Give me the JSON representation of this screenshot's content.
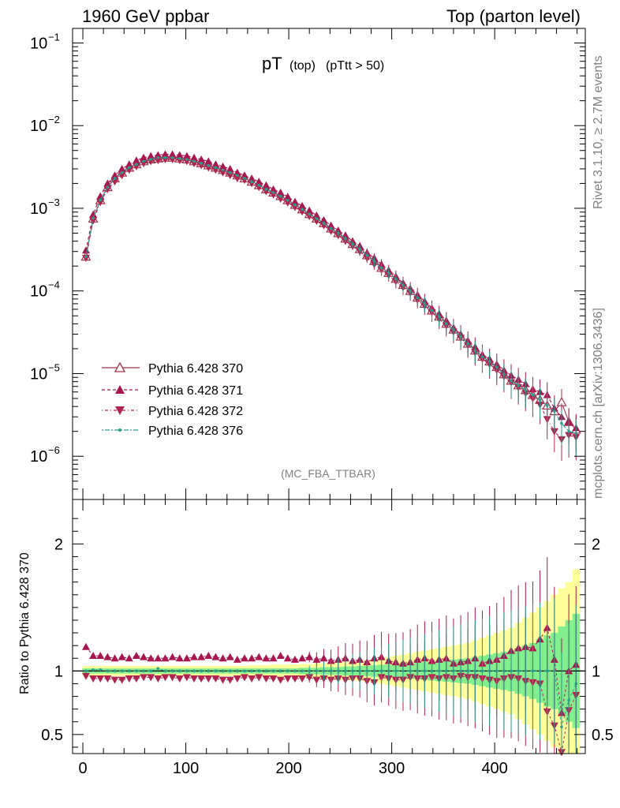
{
  "header": {
    "left": "1960 GeV ppbar",
    "right": "Top (parton level)"
  },
  "side": {
    "rivet": "Rivet 3.1.10, ≥ 2.7M events",
    "mcplots": "mcplots.cern.ch [arXiv:1306.3436]"
  },
  "chart_data": [
    {
      "type": "line",
      "title_main": "pT",
      "title_sub1": "(top)",
      "title_sub2": "(pTtt > 50)",
      "analysis_label": "(MC_FBA_TTBAR)",
      "xlim": [
        -10,
        488
      ],
      "ylim": [
        3e-07,
        0.15
      ],
      "yscale": "log",
      "yticks": [
        {
          "base": "10",
          "exp": "−1",
          "value": 0.1
        },
        {
          "base": "10",
          "exp": "−2",
          "value": 0.01
        },
        {
          "base": "10",
          "exp": "−3",
          "value": 0.001
        },
        {
          "base": "10",
          "exp": "−4",
          "value": 0.0001
        },
        {
          "base": "10",
          "exp": "−5",
          "value": 1e-05
        },
        {
          "base": "10",
          "exp": "−6",
          "value": 1e-06
        }
      ],
      "x": [
        3,
        10,
        17,
        24,
        31,
        38,
        45,
        52,
        59,
        66,
        73,
        80,
        87,
        94,
        101,
        108,
        115,
        122,
        129,
        136,
        143,
        150,
        157,
        164,
        171,
        178,
        185,
        192,
        199,
        206,
        213,
        220,
        227,
        234,
        241,
        248,
        255,
        262,
        269,
        276,
        283,
        290,
        297,
        304,
        311,
        318,
        325,
        332,
        339,
        346,
        353,
        360,
        367,
        374,
        381,
        388,
        395,
        402,
        409,
        416,
        423,
        430,
        437,
        444,
        451,
        458,
        465,
        472,
        479
      ],
      "series": [
        {
          "name": "Pythia 6.428 370",
          "color": "#a0304a",
          "marker": "open-triangle-up",
          "dash": "solid",
          "values": [
            0.00026,
            0.00075,
            0.00125,
            0.0018,
            0.0023,
            0.0027,
            0.0031,
            0.0034,
            0.0037,
            0.0039,
            0.004,
            0.0041,
            0.0041,
            0.004,
            0.0039,
            0.0037,
            0.0035,
            0.0033,
            0.0031,
            0.0029,
            0.0027,
            0.0025,
            0.0023,
            0.0021,
            0.0019,
            0.0017,
            0.00155,
            0.0014,
            0.00125,
            0.0011,
            0.00097,
            0.00085,
            0.00075,
            0.00066,
            0.00057,
            0.0005,
            0.00043,
            0.00037,
            0.00032,
            0.00027,
            0.00023,
            0.00019,
            0.000165,
            0.00014,
            0.000118,
            0.0001,
            8.3e-05,
            7e-05,
            5.8e-05,
            4.9e-05,
            4e-05,
            3.4e-05,
            2.8e-05,
            2.3e-05,
            1.9e-05,
            1.6e-05,
            1.4e-05,
            1.2e-05,
            9.8e-06,
            8.2e-06,
            7.2e-06,
            6.3e-06,
            5.5e-06,
            4.8e-06,
            4.1e-06,
            3.5e-06,
            4.5e-06,
            2.6e-06,
            2.1e-06
          ]
        },
        {
          "name": "Pythia 6.428 371",
          "color": "#a81650",
          "marker": "filled-triangle-up",
          "dash": "4,3",
          "values": [
            0.00031,
            0.00084,
            0.0014,
            0.002,
            0.0025,
            0.003,
            0.0034,
            0.0038,
            0.0041,
            0.0043,
            0.0044,
            0.0045,
            0.0045,
            0.0044,
            0.0043,
            0.0041,
            0.0039,
            0.0037,
            0.0034,
            0.0032,
            0.003,
            0.0027,
            0.0025,
            0.0023,
            0.0021,
            0.0019,
            0.0017,
            0.00155,
            0.00138,
            0.0012,
            0.00107,
            0.00094,
            0.00082,
            0.00072,
            0.00062,
            0.00054,
            0.00047,
            0.0004,
            0.00035,
            0.00029,
            0.00025,
            0.00021,
            0.000178,
            0.00015,
            0.000125,
            0.000107,
            9e-05,
            7.5e-05,
            6.2e-05,
            5.3e-05,
            4.4e-05,
            3.6e-05,
            3e-05,
            2.5e-05,
            2.1e-05,
            1.7e-05,
            1.5e-05,
            1.3e-05,
            1.1e-05,
            9.5e-06,
            8.5e-06,
            7.5e-06,
            6.5e-06,
            6e-06,
            5.5e-06,
            3.8e-06,
            3e-06,
            2.6e-06,
            2.2e-06
          ]
        },
        {
          "name": "Pythia 6.428 372",
          "color": "#b02550",
          "marker": "filled-triangle-down",
          "dash": "1,3,4,3",
          "values": [
            0.00025,
            0.00071,
            0.00118,
            0.0017,
            0.0021,
            0.0025,
            0.0029,
            0.0032,
            0.0035,
            0.0037,
            0.0038,
            0.0039,
            0.0039,
            0.0038,
            0.0037,
            0.0035,
            0.0033,
            0.0031,
            0.0029,
            0.0027,
            0.0025,
            0.0023,
            0.0022,
            0.002,
            0.0018,
            0.0016,
            0.00146,
            0.0013,
            0.00117,
            0.00103,
            0.00091,
            0.0008,
            0.0007,
            0.00062,
            0.00053,
            0.00047,
            0.0004,
            0.00035,
            0.0003,
            0.00025,
            0.00021,
            0.00018,
            0.000155,
            0.00013,
            0.00011,
            9.5e-05,
            7.8e-05,
            6.6e-05,
            5.5e-05,
            4.6e-05,
            3.8e-05,
            3.2e-05,
            2.7e-05,
            2.2e-05,
            1.8e-05,
            1.5e-05,
            1.3e-05,
            1.1e-05,
            9.2e-06,
            7.8e-06,
            6.8e-06,
            5.8e-06,
            5e-06,
            4.2e-06,
            2.8e-06,
            2e-06,
            1.6e-06,
            1.8e-06,
            1.7e-06
          ]
        },
        {
          "name": "Pythia 6.428 376",
          "color": "#2a9d8f",
          "marker": "dot",
          "dash": "2,2,6,2",
          "values": [
            0.00026,
            0.00076,
            0.00126,
            0.0018,
            0.0023,
            0.0027,
            0.0031,
            0.0034,
            0.0037,
            0.0039,
            0.0041,
            0.0041,
            0.0041,
            0.004,
            0.0039,
            0.0037,
            0.0035,
            0.0033,
            0.0031,
            0.0029,
            0.0027,
            0.0025,
            0.0023,
            0.0021,
            0.0019,
            0.0017,
            0.00155,
            0.0014,
            0.00125,
            0.0011,
            0.00097,
            0.00085,
            0.00075,
            0.00066,
            0.00057,
            0.0005,
            0.00043,
            0.00037,
            0.00032,
            0.00027,
            0.00023,
            0.00019,
            0.000165,
            0.00014,
            0.000118,
            0.0001,
            8.3e-05,
            7e-05,
            5.8e-05,
            4.9e-05,
            4e-05,
            3.4e-05,
            2.8e-05,
            2.3e-05,
            1.9e-05,
            1.6e-05,
            1.4e-05,
            1.2e-05,
            9.8e-06,
            8.2e-06,
            7.2e-06,
            6.3e-06,
            5.5e-06,
            4.8e-06,
            4.1e-06,
            3.5e-06,
            2.5e-06,
            2e-06,
            1.9e-06
          ]
        }
      ]
    },
    {
      "type": "line",
      "ylabel": "Ratio to Pythia 6.428 370",
      "xlim": [
        -10,
        488
      ],
      "ylim": [
        0.35,
        2.35
      ],
      "xticks": [
        0,
        100,
        200,
        300,
        400
      ],
      "yticks": [
        {
          "label": "0.5",
          "value": 0.5
        },
        {
          "label": "1",
          "value": 1
        },
        {
          "label": "2",
          "value": 2
        }
      ],
      "band_colors": {
        "inner": "#80ee8c",
        "outer": "#ffff99"
      },
      "band_inner": [
        0.02,
        0.02,
        0.02,
        0.02,
        0.02,
        0.02,
        0.02,
        0.02,
        0.02,
        0.02,
        0.02,
        0.02,
        0.02,
        0.02,
        0.02,
        0.02,
        0.02,
        0.02,
        0.02,
        0.02,
        0.02,
        0.02,
        0.02,
        0.02,
        0.02,
        0.02,
        0.02,
        0.02,
        0.02,
        0.02,
        0.025,
        0.025,
        0.025,
        0.03,
        0.03,
        0.03,
        0.035,
        0.035,
        0.04,
        0.04,
        0.045,
        0.05,
        0.05,
        0.055,
        0.06,
        0.06,
        0.065,
        0.07,
        0.075,
        0.08,
        0.085,
        0.09,
        0.095,
        0.1,
        0.11,
        0.12,
        0.13,
        0.14,
        0.15,
        0.16,
        0.18,
        0.2,
        0.22,
        0.25,
        0.28,
        0.3,
        0.35,
        0.4,
        0.45
      ],
      "band_outer": [
        0.04,
        0.04,
        0.04,
        0.04,
        0.04,
        0.04,
        0.04,
        0.04,
        0.04,
        0.04,
        0.04,
        0.04,
        0.04,
        0.04,
        0.04,
        0.04,
        0.04,
        0.04,
        0.04,
        0.04,
        0.04,
        0.04,
        0.04,
        0.045,
        0.045,
        0.045,
        0.05,
        0.05,
        0.05,
        0.05,
        0.055,
        0.055,
        0.06,
        0.06,
        0.065,
        0.07,
        0.07,
        0.075,
        0.08,
        0.085,
        0.09,
        0.1,
        0.11,
        0.12,
        0.13,
        0.14,
        0.15,
        0.16,
        0.17,
        0.18,
        0.19,
        0.2,
        0.21,
        0.22,
        0.24,
        0.26,
        0.28,
        0.3,
        0.32,
        0.34,
        0.38,
        0.42,
        0.46,
        0.5,
        0.55,
        0.6,
        0.65,
        0.7,
        0.8
      ],
      "series": [
        {
          "name": "Pythia 6.428 371",
          "color": "#a81650",
          "marker": "filled-triangle-up",
          "values": [
            1.19,
            1.12,
            1.12,
            1.11,
            1.1,
            1.11,
            1.1,
            1.12,
            1.11,
            1.1,
            1.1,
            1.1,
            1.11,
            1.1,
            1.1,
            1.11,
            1.11,
            1.12,
            1.11,
            1.1,
            1.11,
            1.09,
            1.1,
            1.1,
            1.11,
            1.1,
            1.1,
            1.12,
            1.1,
            1.09,
            1.1,
            1.11,
            1.09,
            1.1,
            1.08,
            1.09,
            1.1,
            1.08,
            1.09,
            1.07,
            1.1,
            1.11,
            1.08,
            1.07,
            1.06,
            1.07,
            1.09,
            1.1,
            1.08,
            1.09,
            1.1,
            1.06,
            1.07,
            1.08,
            1.1,
            1.06,
            1.08,
            1.09,
            1.12,
            1.16,
            1.18,
            1.19,
            1.18,
            1.25,
            1.34,
            1.09,
            0.67,
            1.0,
            1.05
          ]
        },
        {
          "name": "Pythia 6.428 372",
          "color": "#b02550",
          "marker": "filled-triangle-down",
          "values": [
            0.96,
            0.94,
            0.94,
            0.94,
            0.93,
            0.93,
            0.94,
            0.94,
            0.95,
            0.95,
            0.94,
            0.95,
            0.95,
            0.94,
            0.95,
            0.94,
            0.94,
            0.94,
            0.94,
            0.93,
            0.93,
            0.94,
            0.95,
            0.94,
            0.95,
            0.94,
            0.94,
            0.93,
            0.94,
            0.94,
            0.94,
            0.95,
            0.93,
            0.94,
            0.93,
            0.94,
            0.93,
            0.94,
            0.94,
            0.92,
            0.91,
            0.95,
            0.94,
            0.93,
            0.93,
            0.95,
            0.94,
            0.94,
            0.95,
            0.94,
            0.95,
            0.94,
            0.96,
            0.95,
            0.95,
            0.94,
            0.93,
            0.92,
            0.94,
            0.95,
            0.94,
            0.92,
            0.91,
            0.9,
            0.68,
            0.57,
            0.36,
            0.69,
            0.81
          ]
        },
        {
          "name": "Pythia 6.428 376",
          "color": "#2a9d8f",
          "marker": "dot",
          "values": [
            1.0,
            1.01,
            1.01,
            1.0,
            1.0,
            1.0,
            1.0,
            1.0,
            1.0,
            1.0,
            1.02,
            1.0,
            1.0,
            1.0,
            1.0,
            1.0,
            1.0,
            1.0,
            1.0,
            1.0,
            1.0,
            1.0,
            1.0,
            1.0,
            1.0,
            1.0,
            1.0,
            1.0,
            1.0,
            1.0,
            1.0,
            1.0,
            1.0,
            1.0,
            1.0,
            1.0,
            1.0,
            1.0,
            1.0,
            1.0,
            1.0,
            1.0,
            1.0,
            1.0,
            1.0,
            1.0,
            1.0,
            1.0,
            1.0,
            1.0,
            1.0,
            1.0,
            1.0,
            1.0,
            1.0,
            1.0,
            1.0,
            1.0,
            1.0,
            1.0,
            1.0,
            1.0,
            1.0,
            1.0,
            1.0,
            1.0,
            0.56,
            0.77,
            0.9
          ]
        }
      ]
    }
  ]
}
